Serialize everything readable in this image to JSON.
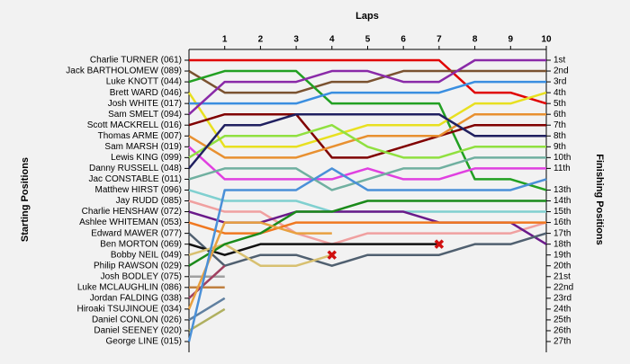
{
  "chart_data": {
    "type": "line",
    "title": "Laps",
    "y_label": "Starting Positions",
    "y2_label": "Finishing Positions",
    "x": [
      0,
      1,
      2,
      3,
      4,
      5,
      6,
      7,
      8,
      9,
      10
    ],
    "xlim": [
      0,
      10
    ],
    "xticks": [
      1,
      2,
      3,
      4,
      5,
      6,
      7,
      8,
      9,
      10
    ],
    "ylim": [
      1,
      27
    ],
    "inverted": true,
    "right_labels": [
      "1st",
      "2nd",
      "3rd",
      "4th",
      "5th",
      "6th",
      "7th",
      "8th",
      "9th",
      "10th",
      "11th",
      null,
      "13th",
      "14th",
      "15th",
      "16th",
      "17th",
      "18th",
      "19th",
      "20th",
      "21st",
      "22nd",
      "23rd",
      "24th",
      "25th",
      "26th",
      "27th"
    ],
    "series": [
      {
        "name": "Charlie TURNER (061)",
        "color": "#e00000",
        "values": [
          1,
          1,
          1,
          1,
          1,
          1,
          1,
          1,
          4,
          4,
          5
        ]
      },
      {
        "name": "Jack BARTHOLOMEW (089)",
        "color": "#7a5230",
        "values": [
          2,
          4,
          4,
          4,
          3,
          3,
          2,
          2,
          2,
          2,
          2
        ]
      },
      {
        "name": "Luke KNOTT (044)",
        "color": "#22a022",
        "values": [
          3,
          2,
          2,
          2,
          5,
          5,
          5,
          5,
          12,
          12,
          13
        ]
      },
      {
        "name": "Brett WARD (046)",
        "color": "#e8e020",
        "values": [
          4,
          9,
          9,
          9,
          8,
          7,
          7,
          7,
          5,
          5,
          4
        ]
      },
      {
        "name": "Josh WHITE (017)",
        "color": "#3a8ee0",
        "values": [
          5,
          5,
          5,
          5,
          4,
          4,
          4,
          4,
          3,
          3,
          3
        ]
      },
      {
        "name": "Sam SMELT (094)",
        "color": "#8a2aa8",
        "values": [
          6,
          3,
          3,
          3,
          2,
          2,
          3,
          3,
          1,
          1,
          1
        ]
      },
      {
        "name": "Scott MACKRELL (016)",
        "color": "#800000",
        "values": [
          7,
          6,
          6,
          6,
          10,
          10,
          9,
          8,
          7,
          7,
          7
        ]
      },
      {
        "name": "Thomas ARME (007)",
        "color": "#e89030",
        "values": [
          8,
          10,
          10,
          10,
          9,
          8,
          8,
          8,
          6,
          6,
          6
        ]
      },
      {
        "name": "Sam MARSH (019)",
        "color": "#e040e0",
        "values": [
          9,
          12,
          12,
          12,
          12,
          11,
          12,
          12,
          11,
          11,
          11
        ]
      },
      {
        "name": "Lewis KING (099)",
        "color": "#90e040",
        "values": [
          10,
          8,
          8,
          8,
          7,
          9,
          10,
          10,
          9,
          9,
          9
        ]
      },
      {
        "name": "Danny RUSSELL (048)",
        "color": "#202060",
        "values": [
          11,
          7,
          7,
          6,
          6,
          6,
          6,
          6,
          8,
          8,
          8
        ]
      },
      {
        "name": "Jac CONSTABLE (011)",
        "color": "#70b0a0",
        "values": [
          12,
          11,
          11,
          11,
          13,
          12,
          11,
          11,
          10,
          10,
          10
        ]
      },
      {
        "name": "Matthew HIRST (096)",
        "color": "#80d0d0",
        "values": [
          13,
          14,
          14,
          14,
          15,
          15,
          15,
          15,
          15,
          15,
          15
        ]
      },
      {
        "name": "Jay RUDD (085)",
        "color": "#f0a0a0",
        "values": [
          14,
          15,
          15,
          17,
          18,
          17,
          17,
          17,
          17,
          17,
          16
        ]
      },
      {
        "name": "Charlie HENSHAW (072)",
        "color": "#6a1a8a",
        "values": [
          15,
          16,
          16,
          15,
          15,
          15,
          15,
          16,
          16,
          16,
          18
        ]
      },
      {
        "name": "Ashlee WHITEMAN (053)",
        "color": "#f07820",
        "values": [
          16,
          17,
          17,
          16,
          16,
          16,
          16,
          16,
          16,
          16,
          16
        ]
      },
      {
        "name": "Edward MAWER (077)",
        "color": "#506070",
        "values": [
          17,
          20,
          19,
          19,
          20,
          19,
          19,
          19,
          18,
          18,
          17
        ]
      },
      {
        "name": "Ben MORTON (069)",
        "color": "#101010",
        "retired": true,
        "values": [
          18,
          19,
          18,
          18,
          18,
          18,
          18,
          18,
          null,
          null,
          null
        ]
      },
      {
        "name": "Bobby NEIL (049)",
        "color": "#d8c070",
        "retired": true,
        "values": [
          19,
          18,
          20,
          20,
          19,
          null,
          null,
          null,
          null,
          null,
          null
        ]
      },
      {
        "name": "Philip RAWSON (029)",
        "color": "#1a8a1a",
        "values": [
          20,
          18,
          17,
          15,
          15,
          14,
          14,
          14,
          14,
          14,
          14
        ]
      },
      {
        "name": "Josh BODLEY (075)",
        "color": "#a0a0a0",
        "values": [
          21,
          21,
          null,
          null,
          null,
          null,
          null,
          null,
          null,
          null,
          null
        ]
      },
      {
        "name": "Luke MCLAUGHLIN (086)",
        "color": "#c08040",
        "values": [
          22,
          22,
          null,
          null,
          null,
          null,
          null,
          null,
          null,
          null,
          null
        ]
      },
      {
        "name": "Jordan FALDING (038)",
        "color": "#a04060",
        "values": [
          23,
          20,
          null,
          null,
          null,
          null,
          null,
          null,
          null,
          null,
          null
        ]
      },
      {
        "name": "Hiroaki TSUJINOUE (034)",
        "color": "#e8a040",
        "values": [
          24,
          16,
          16,
          17,
          17,
          null,
          null,
          null,
          null,
          null,
          null
        ]
      },
      {
        "name": "Daniel CONLON (026)",
        "color": "#6080a0",
        "values": [
          25,
          23,
          null,
          null,
          null,
          null,
          null,
          null,
          null,
          null,
          null
        ]
      },
      {
        "name": "Daniel SEENEY (020)",
        "color": "#b0b060",
        "values": [
          26,
          24,
          null,
          null,
          null,
          null,
          null,
          null,
          null,
          null,
          null
        ]
      },
      {
        "name": "George LINE (015)",
        "color": "#4a90d8",
        "values": [
          27,
          13,
          13,
          13,
          11,
          13,
          13,
          13,
          13,
          13,
          12
        ]
      }
    ]
  }
}
